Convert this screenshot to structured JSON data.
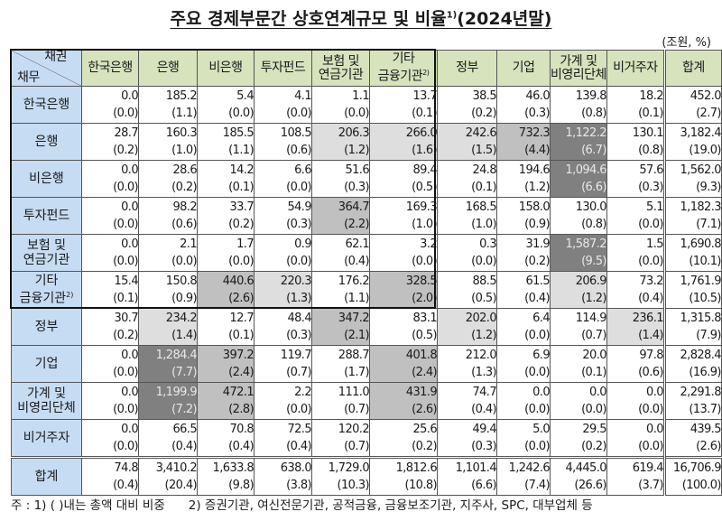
{
  "title": "주요 경제부문간 상호연계규모 및 비율",
  "title_footnote": "1)",
  "title_suffix": "(2024년말)",
  "unit": "(조원, %)",
  "corner": {
    "creditor": "채권",
    "debtor": "채무"
  },
  "columns": [
    {
      "label": "한국은행"
    },
    {
      "label": "은행"
    },
    {
      "label": "비은행"
    },
    {
      "label": "투자펀드"
    },
    {
      "label": "보험 및",
      "label2": "연금기관"
    },
    {
      "label": "기타",
      "label2": "금융기관",
      "note": "2)"
    },
    {
      "label": "정부"
    },
    {
      "label": "기업"
    },
    {
      "label": "가계 및",
      "label2": "비영리단체"
    },
    {
      "label": "비거주자"
    },
    {
      "label": "합계"
    }
  ],
  "rows": [
    {
      "label": "한국은행",
      "cells": [
        [
          "0.0",
          "(0.0)",
          ""
        ],
        [
          "185.2",
          "(1.1)",
          ""
        ],
        [
          "5.4",
          "(0.0)",
          ""
        ],
        [
          "4.1",
          "(0.0)",
          ""
        ],
        [
          "1.1",
          "(0.0)",
          ""
        ],
        [
          "13.7",
          "(0.1)",
          ""
        ],
        [
          "38.5",
          "(0.2)",
          ""
        ],
        [
          "46.0",
          "(0.3)",
          ""
        ],
        [
          "139.8",
          "(0.8)",
          ""
        ],
        [
          "18.2",
          "(0.1)",
          ""
        ],
        [
          "452.0",
          "(2.7)",
          ""
        ]
      ]
    },
    {
      "label": "은행",
      "cells": [
        [
          "28.7",
          "(0.2)",
          ""
        ],
        [
          "160.3",
          "(1.0)",
          ""
        ],
        [
          "185.5",
          "(1.1)",
          ""
        ],
        [
          "108.5",
          "(0.6)",
          ""
        ],
        [
          "206.3",
          "(1.2)",
          "lt"
        ],
        [
          "266.0",
          "(1.6)",
          "lt"
        ],
        [
          "242.6",
          "(1.5)",
          "lt"
        ],
        [
          "732.3",
          "(4.4)",
          "md"
        ],
        [
          "1,122.2",
          "(6.7)",
          "dk"
        ],
        [
          "130.1",
          "(0.8)",
          ""
        ],
        [
          "3,182.4",
          "(19.0)",
          ""
        ]
      ]
    },
    {
      "label": "비은행",
      "cells": [
        [
          "0.0",
          "(0.0)",
          ""
        ],
        [
          "28.6",
          "(0.2)",
          ""
        ],
        [
          "14.2",
          "(0.1)",
          ""
        ],
        [
          "6.6",
          "(0.0)",
          ""
        ],
        [
          "51.6",
          "(0.3)",
          ""
        ],
        [
          "89.4",
          "(0.5)",
          ""
        ],
        [
          "24.8",
          "(0.1)",
          ""
        ],
        [
          "194.6",
          "(1.2)",
          ""
        ],
        [
          "1,094.6",
          "(6.6)",
          "dk"
        ],
        [
          "57.6",
          "(0.3)",
          ""
        ],
        [
          "1,562.0",
          "(9.3)",
          ""
        ]
      ]
    },
    {
      "label": "투자펀드",
      "cells": [
        [
          "0.0",
          "(0.0)",
          ""
        ],
        [
          "98.2",
          "(0.6)",
          ""
        ],
        [
          "33.7",
          "(0.2)",
          ""
        ],
        [
          "54.9",
          "(0.3)",
          ""
        ],
        [
          "364.7",
          "(2.2)",
          "md"
        ],
        [
          "169.3",
          "(1.0)",
          ""
        ],
        [
          "168.5",
          "(1.0)",
          ""
        ],
        [
          "158.0",
          "(0.9)",
          ""
        ],
        [
          "130.0",
          "(0.8)",
          ""
        ],
        [
          "5.1",
          "(0.0)",
          ""
        ],
        [
          "1,182.3",
          "(7.1)",
          ""
        ]
      ]
    },
    {
      "label": "보험 및",
      "label2": "연금기관",
      "cells": [
        [
          "0.0",
          "(0.0)",
          ""
        ],
        [
          "2.1",
          "(0.0)",
          ""
        ],
        [
          "1.7",
          "(0.0)",
          ""
        ],
        [
          "0.9",
          "(0.0)",
          ""
        ],
        [
          "62.1",
          "(0.4)",
          ""
        ],
        [
          "3.2",
          "(0.0)",
          ""
        ],
        [
          "0.3",
          "(0.0)",
          ""
        ],
        [
          "31.9",
          "(0.2)",
          ""
        ],
        [
          "1,587.2",
          "(9.5)",
          "dk"
        ],
        [
          "1.5",
          "(0.0)",
          ""
        ],
        [
          "1,690.8",
          "(10.1)",
          ""
        ]
      ]
    },
    {
      "label": "기타",
      "label2": "금융기관",
      "note": "2)",
      "cells": [
        [
          "15.4",
          "(0.1)",
          ""
        ],
        [
          "150.8",
          "(0.9)",
          ""
        ],
        [
          "440.6",
          "(2.6)",
          "md"
        ],
        [
          "220.3",
          "(1.3)",
          "lt"
        ],
        [
          "176.2",
          "(1.1)",
          ""
        ],
        [
          "328.5",
          "(2.0)",
          "md"
        ],
        [
          "88.5",
          "(0.5)",
          ""
        ],
        [
          "61.5",
          "(0.4)",
          ""
        ],
        [
          "206.9",
          "(1.2)",
          "lt"
        ],
        [
          "73.2",
          "(0.4)",
          ""
        ],
        [
          "1,761.9",
          "(10.5)",
          ""
        ]
      ]
    },
    {
      "label": "정부",
      "cells": [
        [
          "30.7",
          "(0.2)",
          ""
        ],
        [
          "234.2",
          "(1.4)",
          "lt"
        ],
        [
          "12.7",
          "(0.1)",
          ""
        ],
        [
          "48.4",
          "(0.3)",
          ""
        ],
        [
          "347.2",
          "(2.1)",
          "md"
        ],
        [
          "83.1",
          "(0.5)",
          ""
        ],
        [
          "202.0",
          "(1.2)",
          "lt"
        ],
        [
          "6.4",
          "(0.0)",
          ""
        ],
        [
          "114.9",
          "(0.7)",
          ""
        ],
        [
          "236.1",
          "(1.4)",
          "lt"
        ],
        [
          "1,315.8",
          "(7.9)",
          ""
        ]
      ]
    },
    {
      "label": "기업",
      "cells": [
        [
          "0.0",
          "(0.0)",
          ""
        ],
        [
          "1,284.4",
          "(7.7)",
          "dk"
        ],
        [
          "397.2",
          "(2.4)",
          "md"
        ],
        [
          "119.7",
          "(0.7)",
          ""
        ],
        [
          "288.7",
          "(1.7)",
          ""
        ],
        [
          "401.8",
          "(2.4)",
          "md"
        ],
        [
          "212.0",
          "(1.3)",
          ""
        ],
        [
          "6.9",
          "(0.0)",
          ""
        ],
        [
          "20.0",
          "(0.1)",
          ""
        ],
        [
          "97.8",
          "(0.6)",
          ""
        ],
        [
          "2,828.4",
          "(16.9)",
          ""
        ]
      ]
    },
    {
      "label": "가계 및",
      "label2": "비영리단체",
      "cells": [
        [
          "0.0",
          "(0.0)",
          ""
        ],
        [
          "1,199.9",
          "(7.2)",
          "dk"
        ],
        [
          "472.1",
          "(2.8)",
          "md"
        ],
        [
          "2.2",
          "(0.0)",
          ""
        ],
        [
          "111.0",
          "(0.7)",
          ""
        ],
        [
          "431.9",
          "(2.6)",
          "md"
        ],
        [
          "74.7",
          "(0.4)",
          ""
        ],
        [
          "0.0",
          "(0.0)",
          ""
        ],
        [
          "0.0",
          "(0.0)",
          ""
        ],
        [
          "0.0",
          "(0.0)",
          ""
        ],
        [
          "2,291.8",
          "(13.7)",
          ""
        ]
      ]
    },
    {
      "label": "비거주자",
      "cells": [
        [
          "0.0",
          "(0.0)",
          ""
        ],
        [
          "66.5",
          "(0.4)",
          ""
        ],
        [
          "70.8",
          "(0.4)",
          ""
        ],
        [
          "72.5",
          "(0.4)",
          ""
        ],
        [
          "120.2",
          "(0.7)",
          ""
        ],
        [
          "25.6",
          "(0.2)",
          ""
        ],
        [
          "49.4",
          "(0.3)",
          ""
        ],
        [
          "5.0",
          "(0.0)",
          ""
        ],
        [
          "29.5",
          "(0.2)",
          ""
        ],
        [
          "0.0",
          "(0.0)",
          ""
        ],
        [
          "439.5",
          "(2.6)",
          ""
        ]
      ]
    },
    {
      "label": "합계",
      "cells": [
        [
          "74.8",
          "(0.4)",
          ""
        ],
        [
          "3,410.2",
          "(20.4)",
          ""
        ],
        [
          "1,633.8",
          "(9.8)",
          ""
        ],
        [
          "638.0",
          "(3.8)",
          ""
        ],
        [
          "1,729.0",
          "(10.3)",
          ""
        ],
        [
          "1,812.6",
          "(10.8)",
          ""
        ],
        [
          "1,101.4",
          "(6.6)",
          ""
        ],
        [
          "1,242.6",
          "(7.4)",
          ""
        ],
        [
          "4,445.0",
          "(26.6)",
          ""
        ],
        [
          "619.4",
          "(3.7)",
          ""
        ],
        [
          "16,706.9",
          "(100.0)",
          ""
        ]
      ]
    }
  ],
  "notes": {
    "prefix": "주 : ",
    "note1": "1) ( )내는 총액 대비 비중",
    "note2": "2) 증권기관, 여신전문기관, 공적금융, 금융보조기관, 지주사, SPC, 대부업체 등"
  },
  "colors": {
    "header_green": "#d7e3bc",
    "row_header_blue": "#c6dcf2",
    "shade_light": "#dedede",
    "shade_medium": "#c0c0c0",
    "shade_dark": "#808080"
  }
}
